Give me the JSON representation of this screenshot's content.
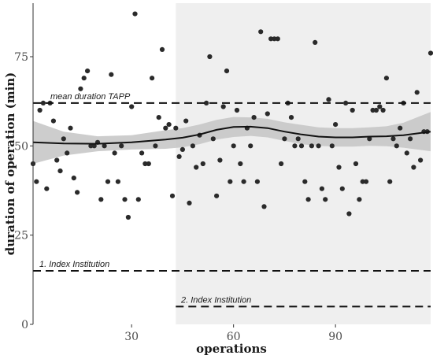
{
  "chart_data": {
    "type": "scatter",
    "xlabel": "operations",
    "ylabel": "duration of operation (min)",
    "xlim": [
      1,
      118
    ],
    "ylim": [
      0,
      90
    ],
    "x_ticks": [
      30,
      60,
      90
    ],
    "y_ticks": [
      0,
      25,
      50,
      75
    ],
    "grid": false,
    "shaded_region": {
      "x_start": 43,
      "x_end": 118
    },
    "reference_lines": [
      {
        "label": "mean duration TAPP",
        "y": 62,
        "x_start": 1,
        "x_end": 118
      },
      {
        "label": "1. Index Institution",
        "y": 15,
        "x_start": 1,
        "x_end": 118
      },
      {
        "label": "2. Index Institution",
        "y": 5,
        "x_start": 43,
        "x_end": 118
      }
    ],
    "points": [
      [
        1,
        45
      ],
      [
        2,
        40
      ],
      [
        3,
        60
      ],
      [
        4,
        62
      ],
      [
        5,
        38
      ],
      [
        6,
        62
      ],
      [
        7,
        57
      ],
      [
        8,
        46
      ],
      [
        9,
        43
      ],
      [
        10,
        52
      ],
      [
        11,
        48
      ],
      [
        12,
        55
      ],
      [
        13,
        41
      ],
      [
        14,
        37
      ],
      [
        15,
        66
      ],
      [
        16,
        69
      ],
      [
        17,
        71
      ],
      [
        18,
        50
      ],
      [
        19,
        50
      ],
      [
        20,
        51
      ],
      [
        21,
        35
      ],
      [
        22,
        50
      ],
      [
        23,
        40
      ],
      [
        24,
        70
      ],
      [
        25,
        48
      ],
      [
        26,
        40
      ],
      [
        27,
        50
      ],
      [
        28,
        35
      ],
      [
        29,
        30
      ],
      [
        30,
        61
      ],
      [
        31,
        87
      ],
      [
        32,
        35
      ],
      [
        33,
        48
      ],
      [
        34,
        45
      ],
      [
        35,
        45
      ],
      [
        36,
        69
      ],
      [
        37,
        50
      ],
      [
        38,
        58
      ],
      [
        39,
        77
      ],
      [
        40,
        55
      ],
      [
        41,
        56
      ],
      [
        42,
        36
      ],
      [
        43,
        55
      ],
      [
        44,
        47
      ],
      [
        45,
        49
      ],
      [
        46,
        57
      ],
      [
        47,
        34
      ],
      [
        48,
        50
      ],
      [
        49,
        44
      ],
      [
        50,
        53
      ],
      [
        51,
        45
      ],
      [
        52,
        62
      ],
      [
        53,
        75
      ],
      [
        54,
        52
      ],
      [
        55,
        36
      ],
      [
        56,
        46
      ],
      [
        57,
        61
      ],
      [
        58,
        71
      ],
      [
        59,
        40
      ],
      [
        60,
        50
      ],
      [
        61,
        60
      ],
      [
        62,
        45
      ],
      [
        63,
        40
      ],
      [
        64,
        55
      ],
      [
        65,
        50
      ],
      [
        66,
        58
      ],
      [
        67,
        40
      ],
      [
        68,
        82
      ],
      [
        69,
        33
      ],
      [
        70,
        59
      ],
      [
        71,
        80
      ],
      [
        72,
        80
      ],
      [
        73,
        80
      ],
      [
        74,
        45
      ],
      [
        75,
        52
      ],
      [
        76,
        62
      ],
      [
        77,
        58
      ],
      [
        78,
        50
      ],
      [
        79,
        52
      ],
      [
        80,
        50
      ],
      [
        81,
        40
      ],
      [
        82,
        35
      ],
      [
        83,
        50
      ],
      [
        84,
        79
      ],
      [
        85,
        50
      ],
      [
        86,
        38
      ],
      [
        87,
        35
      ],
      [
        88,
        63
      ],
      [
        89,
        50
      ],
      [
        90,
        56
      ],
      [
        91,
        44
      ],
      [
        92,
        38
      ],
      [
        93,
        62
      ],
      [
        94,
        31
      ],
      [
        95,
        60
      ],
      [
        96,
        45
      ],
      [
        97,
        35
      ],
      [
        98,
        40
      ],
      [
        99,
        40
      ],
      [
        100,
        52
      ],
      [
        101,
        60
      ],
      [
        102,
        60
      ],
      [
        103,
        61
      ],
      [
        104,
        60
      ],
      [
        105,
        69
      ],
      [
        106,
        40
      ],
      [
        107,
        52
      ],
      [
        108,
        50
      ],
      [
        109,
        55
      ],
      [
        110,
        62
      ],
      [
        111,
        48
      ],
      [
        112,
        52
      ],
      [
        113,
        44
      ],
      [
        114,
        65
      ],
      [
        115,
        46
      ],
      [
        116,
        54
      ],
      [
        117,
        54
      ],
      [
        118,
        76
      ]
    ],
    "smooth": {
      "x": [
        1,
        10,
        20,
        30,
        40,
        45,
        50,
        55,
        60,
        65,
        70,
        75,
        80,
        85,
        90,
        95,
        100,
        105,
        110,
        118
      ],
      "y": [
        51,
        50.7,
        50.6,
        51,
        51.8,
        52.3,
        53.2,
        54.5,
        55.3,
        55.4,
        55,
        54,
        53.2,
        52.6,
        52.4,
        52.4,
        52.6,
        52.7,
        53,
        54
      ],
      "lower": [
        45,
        47.3,
        48.5,
        49,
        49.2,
        49.6,
        50.5,
        51.8,
        52.5,
        52.8,
        52.4,
        51.4,
        50.5,
        50,
        49.8,
        49.8,
        50,
        49.9,
        49.5,
        48.5
      ],
      "upper": [
        57,
        54,
        52.7,
        53,
        54.4,
        55,
        56,
        57.3,
        58.1,
        58,
        57.6,
        56.6,
        55.9,
        55.2,
        55,
        55,
        55.2,
        55.5,
        56.5,
        59.5
      ]
    }
  }
}
